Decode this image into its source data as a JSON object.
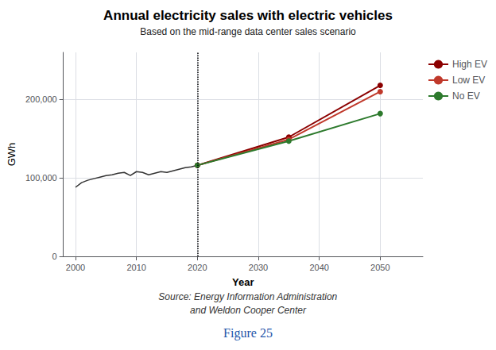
{
  "chart_data": {
    "type": "line",
    "title": "Annual electricity sales with electric vehicles",
    "subtitle": "Based on the mid-range data center sales scenario",
    "x_label": "Year",
    "y_label": "GWh",
    "annotations": [
      "Source: Energy Information Administration",
      "and Weldon Cooper Center",
      "Figure 25"
    ],
    "xlim": [
      1998,
      2057
    ],
    "xticks": [
      2000,
      2010,
      2020,
      2030,
      2040,
      2050
    ],
    "ylim": [
      0,
      260000
    ],
    "yticks": [
      0,
      {
        "value": 100000,
        "label": "100,000"
      },
      {
        "value": 200000,
        "label": "200,000"
      }
    ],
    "grid": true,
    "legend": "right",
    "vline": 2020,
    "series": [
      {
        "color": "#333333",
        "line_style": "solid",
        "x": [
          2000,
          2001,
          2002,
          2003,
          2004,
          2005,
          2006,
          2007,
          2008,
          2009,
          2010,
          2011,
          2012,
          2013,
          2014,
          2015,
          2016,
          2017,
          2018,
          2019,
          2020
        ],
        "values": [
          88000,
          94000,
          97000,
          99000,
          101000,
          103000,
          104000,
          106000,
          107000,
          103000,
          108000,
          107000,
          104000,
          106000,
          108000,
          107000,
          109000,
          111000,
          113000,
          114000,
          116000
        ]
      },
      {
        "name": "High EV",
        "color": "#8b0000",
        "marker": "circle",
        "line_style": "solid",
        "x": [
          2020,
          2035,
          2050
        ],
        "values": [
          116000,
          152000,
          218000
        ]
      },
      {
        "name": "Low EV",
        "color": "#c0392b",
        "marker": "circle",
        "line_style": "solid",
        "x": [
          2020,
          2035,
          2050
        ],
        "values": [
          116000,
          149000,
          210000
        ]
      },
      {
        "name": "No EV",
        "color": "#2d7a2d",
        "marker": "circle",
        "line_style": "solid",
        "x": [
          2020,
          2035,
          2050
        ],
        "values": [
          116000,
          147000,
          182000
        ]
      }
    ]
  }
}
